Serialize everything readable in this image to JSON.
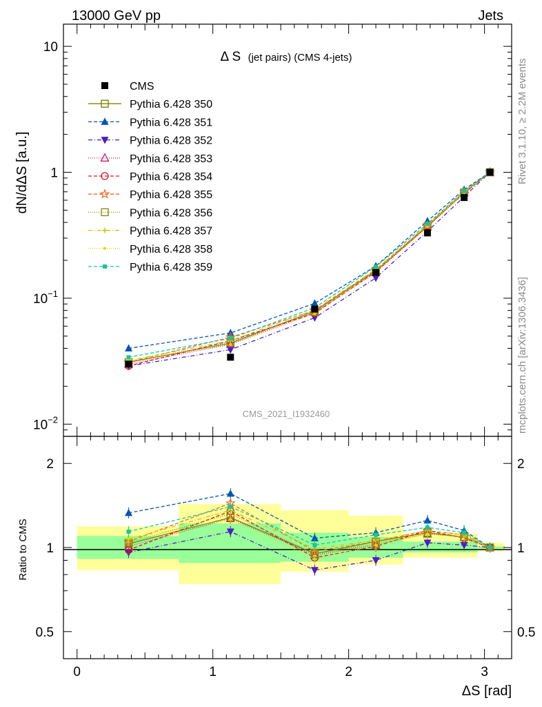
{
  "header": {
    "left": "13000 GeV pp",
    "right": "Jets"
  },
  "side_labels": {
    "rivet": "Rivet 3.1.10, ≥ 2.2M events",
    "mcplots": "mcplots.cern.ch [arXiv:1306.3436]"
  },
  "watermark": "CMS_2021_I1932460",
  "colors": {
    "band_inner": "#99ff99",
    "band_outer": "#ffff99",
    "axis": "#000000"
  },
  "chart_data": [
    {
      "type": "line",
      "panel": "main",
      "title_main": "Δ S",
      "title_sub": "(jet pairs) (CMS 4-jets)",
      "ylabel": "dN/dΔS [a.u.]",
      "xlabel": "",
      "yscale": "log",
      "ylim": [
        0.008,
        15
      ],
      "xlim": [
        -0.1,
        3.2
      ],
      "yticks": [
        {
          "value": 0.01,
          "label": "10",
          "exp": "−2"
        },
        {
          "value": 0.1,
          "label": "10",
          "exp": "−1"
        },
        {
          "value": 1,
          "label": "1",
          "exp": ""
        },
        {
          "value": 10,
          "label": "10",
          "exp": ""
        }
      ],
      "x": [
        0.38,
        1.13,
        1.75,
        2.2,
        2.58,
        2.85,
        3.04
      ],
      "data": {
        "name": "CMS",
        "color": "#000000",
        "marker": "square-filled",
        "values": [
          0.03,
          0.034,
          0.082,
          0.16,
          0.33,
          0.63,
          1.0
        ]
      },
      "series": [
        {
          "name": "Pythia 6.428 350",
          "color": "#808000",
          "dash": "",
          "marker": "square-open",
          "values": [
            0.031,
            0.044,
            0.079,
            0.165,
            0.37,
            0.69,
            1.0
          ]
        },
        {
          "name": "Pythia 6.428 351",
          "color": "#0055b3",
          "dash": "5,3",
          "marker": "triangle-up-filled",
          "values": [
            0.04,
            0.053,
            0.091,
            0.18,
            0.41,
            0.73,
            1.0
          ]
        },
        {
          "name": "Pythia 6.428 352",
          "color": "#4b1ec8",
          "dash": "6,3,1,3",
          "marker": "triangle-down-filled",
          "values": [
            0.029,
            0.039,
            0.07,
            0.145,
            0.34,
            0.64,
            1.0
          ]
        },
        {
          "name": "Pythia 6.428 353",
          "color": "#c0206e",
          "dash": "1,2",
          "marker": "triangle-up-open",
          "values": [
            0.03,
            0.043,
            0.077,
            0.16,
            0.37,
            0.69,
            1.0
          ]
        },
        {
          "name": "Pythia 6.428 354",
          "color": "#e0101e",
          "dash": "5,3",
          "marker": "circle-open",
          "values": [
            0.029,
            0.046,
            0.076,
            0.162,
            0.38,
            0.68,
            1.0
          ]
        },
        {
          "name": "Pythia 6.428 355",
          "color": "#f0661e",
          "dash": "5,3",
          "marker": "star-open",
          "values": [
            0.031,
            0.049,
            0.08,
            0.168,
            0.38,
            0.7,
            1.0
          ]
        },
        {
          "name": "Pythia 6.428 356",
          "color": "#8c8c10",
          "dash": "1,2",
          "marker": "square-open",
          "values": [
            0.031,
            0.045,
            0.078,
            0.165,
            0.37,
            0.69,
            1.0
          ]
        },
        {
          "name": "Pythia 6.428 357",
          "color": "#d8c000",
          "dash": "6,3,1,3",
          "marker": "cross",
          "values": [
            0.032,
            0.046,
            0.081,
            0.17,
            0.38,
            0.7,
            1.0
          ]
        },
        {
          "name": "Pythia 6.428 358",
          "color": "#d0e000",
          "dash": "1,2",
          "marker": "dot",
          "values": [
            0.032,
            0.043,
            0.075,
            0.163,
            0.37,
            0.69,
            1.0
          ]
        },
        {
          "name": "Pythia 6.428 359",
          "color": "#10c8a0",
          "dash": "5,3",
          "marker": "square-small-filled",
          "values": [
            0.034,
            0.048,
            0.084,
            0.178,
            0.39,
            0.71,
            1.0
          ]
        }
      ]
    },
    {
      "type": "line",
      "panel": "ratio",
      "ylabel": "Ratio to CMS",
      "xlabel": "ΔS [rad]",
      "yscale": "log",
      "ylim": [
        0.4,
        2.5
      ],
      "xlim": [
        -0.1,
        3.2
      ],
      "yticks": [
        {
          "value": 0.5,
          "label": "0.5"
        },
        {
          "value": 1,
          "label": "1"
        },
        {
          "value": 2,
          "label": "2"
        }
      ],
      "xticks": [
        0,
        1,
        2,
        3
      ],
      "bands": [
        {
          "x0": 0.0,
          "x1": 0.75,
          "inner": [
            0.91,
            1.1
          ],
          "outer": [
            0.83,
            1.19
          ]
        },
        {
          "x0": 0.75,
          "x1": 1.5,
          "inner": [
            0.88,
            1.22
          ],
          "outer": [
            0.74,
            1.43
          ]
        },
        {
          "x0": 1.5,
          "x1": 2.0,
          "inner": [
            0.89,
            1.13
          ],
          "outer": [
            0.82,
            1.36
          ]
        },
        {
          "x0": 2.0,
          "x1": 2.4,
          "inner": [
            0.92,
            1.09
          ],
          "outer": [
            0.87,
            1.3
          ]
        },
        {
          "x0": 2.4,
          "x1": 2.95,
          "inner": [
            0.96,
            1.05
          ],
          "outer": [
            0.92,
            1.12
          ]
        },
        {
          "x0": 2.95,
          "x1": 3.15,
          "inner": [
            0.99,
            1.01
          ],
          "outer": [
            0.97,
            1.04
          ]
        }
      ],
      "x": [
        0.38,
        1.13,
        1.75,
        2.2,
        2.58,
        2.85,
        3.04
      ],
      "series": [
        {
          "name": "Pythia 6.428 350",
          "values": [
            1.03,
            1.28,
            0.95,
            1.05,
            1.13,
            1.09,
            1.0
          ]
        },
        {
          "name": "Pythia 6.428 351",
          "values": [
            1.33,
            1.56,
            1.08,
            1.13,
            1.25,
            1.15,
            1.0
          ]
        },
        {
          "name": "Pythia 6.428 352",
          "values": [
            0.96,
            1.14,
            0.83,
            0.9,
            1.04,
            1.02,
            1.0
          ]
        },
        {
          "name": "Pythia 6.428 353",
          "values": [
            1.01,
            1.27,
            0.94,
            1.02,
            1.12,
            1.09,
            1.0
          ]
        },
        {
          "name": "Pythia 6.428 354",
          "values": [
            0.98,
            1.35,
            0.92,
            1.01,
            1.15,
            1.08,
            1.0
          ]
        },
        {
          "name": "Pythia 6.428 355",
          "values": [
            1.05,
            1.44,
            0.97,
            1.05,
            1.15,
            1.11,
            1.0
          ]
        },
        {
          "name": "Pythia 6.428 356",
          "values": [
            1.04,
            1.32,
            0.95,
            1.03,
            1.12,
            1.09,
            1.0
          ]
        },
        {
          "name": "Pythia 6.428 357",
          "values": [
            1.07,
            1.36,
            0.99,
            1.06,
            1.15,
            1.11,
            1.0
          ]
        },
        {
          "name": "Pythia 6.428 358",
          "values": [
            1.08,
            1.26,
            0.91,
            1.02,
            1.12,
            1.09,
            1.0
          ]
        },
        {
          "name": "Pythia 6.428 359",
          "values": [
            1.14,
            1.4,
            1.02,
            1.11,
            1.18,
            1.13,
            1.0
          ]
        }
      ]
    }
  ]
}
